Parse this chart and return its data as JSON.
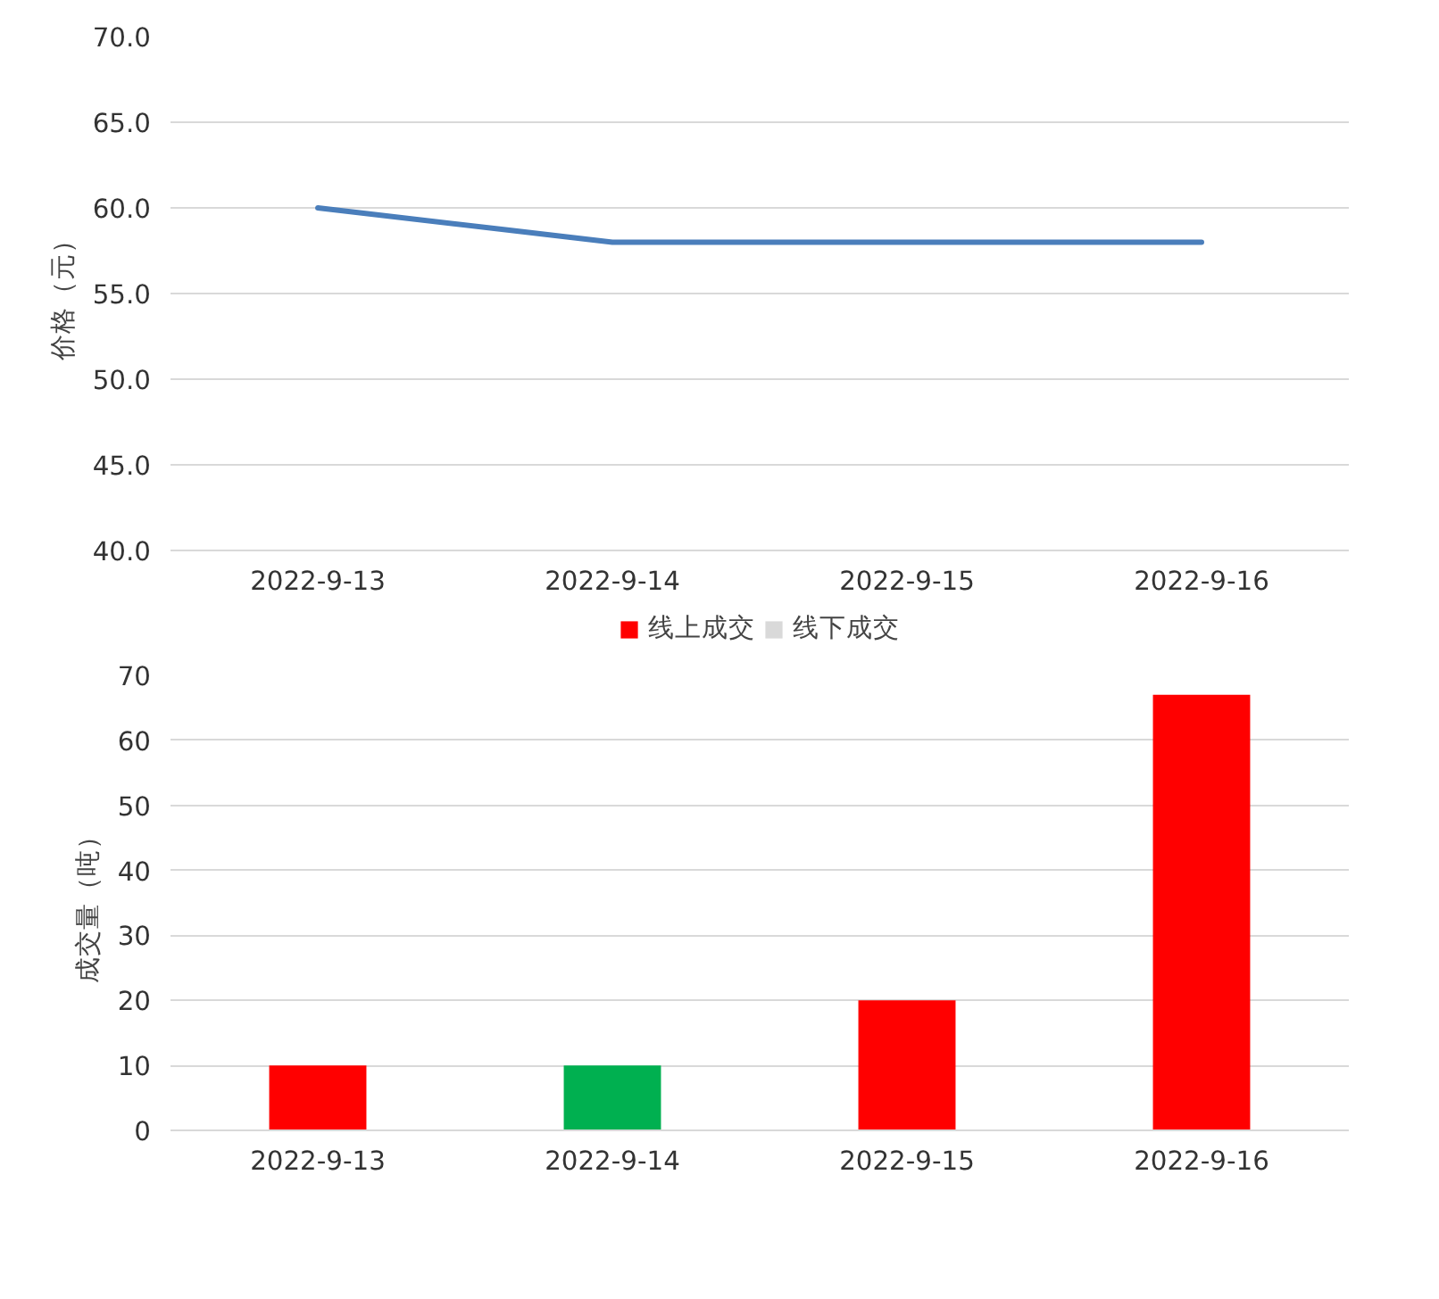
{
  "chart_data": [
    {
      "type": "line",
      "ylabel": "价格（元）",
      "categories": [
        "2022-9-13",
        "2022-9-14",
        "2022-9-15",
        "2022-9-16"
      ],
      "series": [
        {
          "color": "#4a7ebb",
          "values": [
            60.0,
            58.0,
            58.0,
            58.0
          ]
        }
      ],
      "ylim": [
        40,
        70
      ],
      "yticks": [
        {
          "value": 40,
          "label": "40.0"
        },
        {
          "value": 45,
          "label": "45.0"
        },
        {
          "value": 50,
          "label": "50.0"
        },
        {
          "value": 55,
          "label": "55.0"
        },
        {
          "value": 60,
          "label": "60.0"
        },
        {
          "value": 65,
          "label": "65.0"
        },
        {
          "value": 70,
          "label": "70.0"
        }
      ],
      "grid": "y",
      "legend": false
    },
    {
      "type": "bar",
      "ylabel": "成交量（吨）",
      "categories": [
        "2022-9-13",
        "2022-9-14",
        "2022-9-15",
        "2022-9-16"
      ],
      "series": [
        {
          "name": "线上成交",
          "color": "#ff0000",
          "colors": [
            "#ff0000",
            "#00b050",
            "#ff0000",
            "#ff0000"
          ],
          "values": [
            10,
            10,
            20,
            67
          ]
        },
        {
          "name": "线下成交",
          "color": "#d9d9d9",
          "values": [
            null,
            null,
            null,
            null
          ]
        }
      ],
      "ylim": [
        0,
        70
      ],
      "yticks": [
        0,
        10,
        20,
        30,
        40,
        50,
        60,
        70
      ],
      "grid": "y",
      "legend": "top"
    }
  ]
}
